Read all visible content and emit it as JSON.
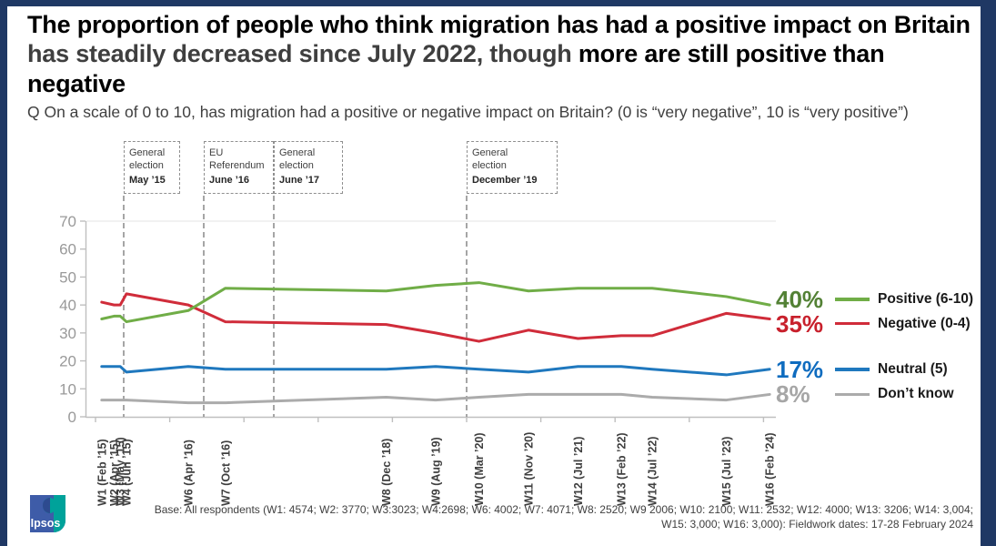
{
  "frame": {
    "border_color": "#1F3864"
  },
  "title": {
    "part1": "The proportion of people who think migration has had a positive impact on Britain ",
    "part2": "has steadily decreased since July 2022, though ",
    "part3": "more are still positive than negative"
  },
  "question": "Q On a scale of 0 to 10, has migration had a positive or negative impact on Britain? (0 is “very negative”, 10 is “very positive”)",
  "annotations": [
    {
      "label": "General election",
      "date": "May ’15",
      "x": 136,
      "width": 62
    },
    {
      "label": "EU Referendum",
      "date": "June ’16",
      "x": 224,
      "width": 77
    },
    {
      "label": "General election",
      "date": "June ’17",
      "x": 301,
      "width": 76
    },
    {
      "label": "General election",
      "date": "December ’19",
      "x": 513,
      "width": 100
    }
  ],
  "chart_data": {
    "type": "line",
    "title": "",
    "xlabel": "",
    "ylabel": "",
    "unit": "%",
    "ylim": [
      0,
      70
    ],
    "ytick_step": 10,
    "grid": false,
    "legend_position": "right",
    "x_axis_unit": "months since Jan 2015",
    "waves": [
      {
        "label": "W1 (Feb ’15)",
        "month": 1
      },
      {
        "label": "W2 (Apr ’15)",
        "month": 3
      },
      {
        "label": "W3 (May ’15)",
        "month": 4
      },
      {
        "label": "W4 (Jun ’15)",
        "month": 5
      },
      {
        "label": "W6 (Apr ’16)",
        "month": 15
      },
      {
        "label": "W7 (Oct ’16)",
        "month": 21
      },
      {
        "label": "W8 (Dec ’18)",
        "month": 47
      },
      {
        "label": "W9 (Aug ’19)",
        "month": 55
      },
      {
        "label": "W10 (Mar ’20)",
        "month": 62
      },
      {
        "label": "W11 (Nov ’20)",
        "month": 70
      },
      {
        "label": "W12 (Jul ’21)",
        "month": 78
      },
      {
        "label": "W13 (Feb ’22)",
        "month": 85
      },
      {
        "label": "W14 (Jul ’22)",
        "month": 90
      },
      {
        "label": "W15 (Jul ’23)",
        "month": 102
      },
      {
        "label": "W16 (Feb ’24)",
        "month": 109
      }
    ],
    "series": [
      {
        "name": "Positive (6-10)",
        "color": "#70AD47",
        "label_color": "#538135",
        "end_label": "40%",
        "values": [
          35,
          36,
          36,
          34,
          38,
          46,
          45,
          47,
          48,
          45,
          46,
          46,
          46,
          43,
          40
        ]
      },
      {
        "name": "Negative (0-4)",
        "color": "#D02C3A",
        "label_color": "#C8202C",
        "end_label": "35%",
        "values": [
          41,
          40,
          40,
          44,
          40,
          34,
          33,
          30,
          27,
          31,
          28,
          29,
          29,
          37,
          35
        ]
      },
      {
        "name": "Neutral (5)",
        "color": "#1F78BE",
        "label_color": "#0F6CBF",
        "end_label": "17%",
        "values": [
          18,
          18,
          18,
          16,
          18,
          17,
          17,
          18,
          17,
          16,
          18,
          18,
          17,
          15,
          17
        ]
      },
      {
        "name": "Don’t know",
        "color": "#ABABAB",
        "label_color": "#A6A6A6",
        "end_label": "8%",
        "values": [
          6,
          6,
          6,
          6,
          5,
          5,
          7,
          6,
          7,
          8,
          8,
          8,
          7,
          6,
          8
        ]
      }
    ]
  },
  "footer": {
    "base_line1": "Base: All respondents (W1: 4574; W2: 3770; W3:3023; W4:2698; W6: 4002; W7: 4071; W8: 2520; W9 2006; W10: 2100; W11: 2532; W12: 4000; W13: 3206; W14: 3,004;",
    "base_line2": "W15: 3,000; W16: 3,000): Fieldwork dates: 17-28 February 2024"
  },
  "logo": {
    "text": "Ipsos",
    "blue": "#3E5CA8",
    "teal": "#00A29A"
  }
}
